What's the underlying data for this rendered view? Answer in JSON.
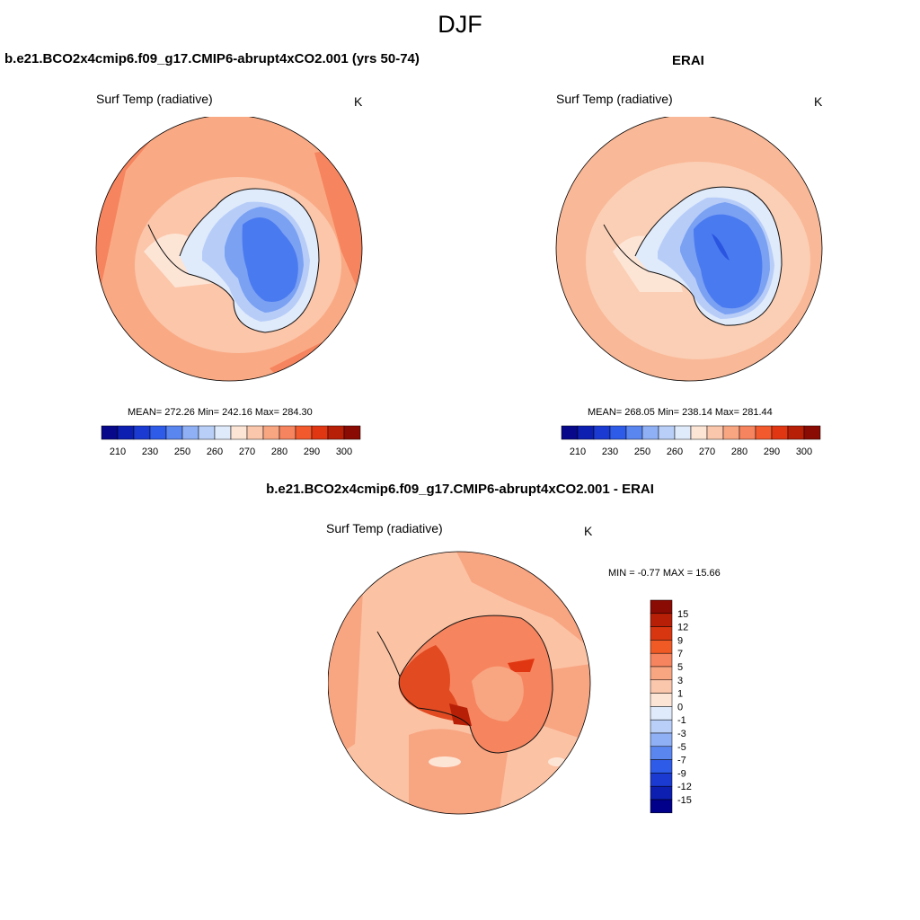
{
  "figure": {
    "season": "DJF"
  },
  "chart_data": [
    {
      "type": "heatmap",
      "projection": "south-polar-stereographic",
      "title": "b.e21.BCO2x4cmip6.f09_g17.CMIP6-abrupt4xCO2.001 (yrs 50-74)",
      "variable": "Surf Temp (radiative)",
      "units": "K",
      "stats_text": "MEAN= 272.26  Min= 242.16  Max= 284.30",
      "mean": 272.26,
      "min": 242.16,
      "max": 284.3,
      "colorbar": {
        "orientation": "horizontal",
        "levels": [
          205,
          210,
          215,
          220,
          225,
          230,
          235,
          240,
          245,
          250,
          255,
          260,
          265,
          270,
          275,
          280,
          285,
          290,
          295,
          300
        ],
        "tick_labels": [
          "210",
          "230",
          "250",
          "260",
          "270",
          "280",
          "290",
          "300"
        ]
      }
    },
    {
      "type": "heatmap",
      "projection": "south-polar-stereographic",
      "title": "ERAI",
      "variable": "Surf Temp (radiative)",
      "units": "K",
      "stats_text": "MEAN= 268.05  Min= 238.14  Max= 281.44",
      "mean": 268.05,
      "min": 238.14,
      "max": 281.44,
      "colorbar": {
        "orientation": "horizontal",
        "levels": [
          205,
          210,
          215,
          220,
          225,
          230,
          235,
          240,
          245,
          250,
          255,
          260,
          265,
          270,
          275,
          280,
          285,
          290,
          295,
          300
        ],
        "tick_labels": [
          "210",
          "230",
          "250",
          "260",
          "270",
          "280",
          "290",
          "300"
        ]
      }
    },
    {
      "type": "heatmap",
      "projection": "south-polar-stereographic",
      "title": "b.e21.BCO2x4cmip6.f09_g17.CMIP6-abrupt4xCO2.001 - ERAI",
      "variable": "Surf Temp (radiative)",
      "units": "K",
      "stats_text": "MIN =  -0.77 MAX =  15.66",
      "min": -0.77,
      "max": 15.66,
      "colorbar": {
        "orientation": "vertical",
        "tick_labels": [
          "15",
          "12",
          "9",
          "7",
          "5",
          "3",
          "1",
          "0",
          "-1",
          "-3",
          "-5",
          "-7",
          "-9",
          "-12",
          "-15"
        ]
      }
    }
  ],
  "colors": {
    "abs_palette": [
      "#08088a",
      "#0c1fb0",
      "#1a3ad1",
      "#2e5be8",
      "#5a86f0",
      "#8fb0f5",
      "#b9cff8",
      "#dfeafb",
      "#fde5d6",
      "#fbc7ac",
      "#f8a582",
      "#f6845e",
      "#f25a2e",
      "#e03712",
      "#b81f07",
      "#8a0a04"
    ],
    "diff_palette_top_to_bottom": [
      "#8a0a04",
      "#b81f07",
      "#d83610",
      "#f05a24",
      "#f6845e",
      "#f8a582",
      "#fbc7ac",
      "#fde5d6",
      "#dfeafb",
      "#b9cff8",
      "#8fb0f5",
      "#5a86f0",
      "#2e5be8",
      "#1a3ad1",
      "#0c1fb0",
      "#00008a"
    ],
    "ocean_model": "#f9aa85",
    "ocean_model_inner": "#fbc6aa",
    "ocean_erai": "#f9b897",
    "ocean_erai_inner": "#fbcfb5",
    "ice_deep": "#4a7af0",
    "ice_mid": "#7ba1f3",
    "ice_light": "#b7cdf8",
    "ice_pale": "#dfeafb",
    "diff_ocean": "#fbc2a3",
    "diff_land": "#f6845e",
    "diff_land_hot": "#e24a22"
  }
}
